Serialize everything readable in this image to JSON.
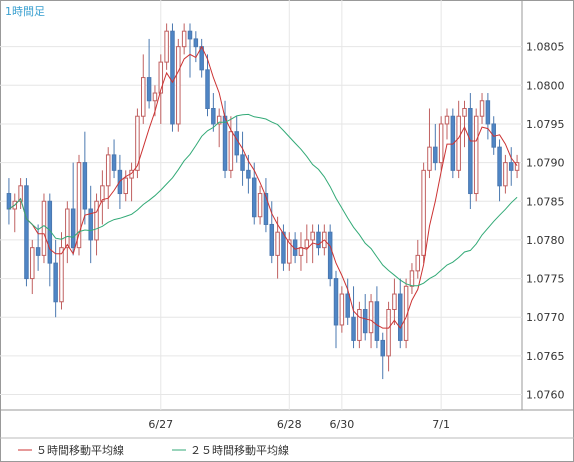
{
  "chart_data": {
    "type": "candlestick",
    "title": "1時間足",
    "ylim": [
      1.0758,
      1.081
    ],
    "y_ticks": [
      "1.0760",
      "1.0765",
      "1.0770",
      "1.0775",
      "1.0780",
      "1.0785",
      "1.0790",
      "1.0795",
      "1.0800",
      "1.0805"
    ],
    "x_labels": [
      {
        "label": "6/27",
        "index": 26
      },
      {
        "label": "6/28",
        "index": 48
      },
      {
        "label": "6/30",
        "index": 57
      },
      {
        "label": "7/1",
        "index": 74
      }
    ],
    "grid": true,
    "legend": [
      {
        "name": "５時間移動平均線",
        "color": "#cc3333"
      },
      {
        "name": "２５時間移動平均線",
        "color": "#33aa77"
      }
    ],
    "candles": [
      [
        1.0786,
        1.0788,
        1.0782,
        1.0784
      ],
      [
        1.0784,
        1.0786,
        1.0781,
        1.0785
      ],
      [
        1.0785,
        1.0788,
        1.0784,
        1.0787
      ],
      [
        1.0787,
        1.0788,
        1.0774,
        1.0775
      ],
      [
        1.0775,
        1.078,
        1.0773,
        1.0779
      ],
      [
        1.0779,
        1.0782,
        1.0776,
        1.0778
      ],
      [
        1.0778,
        1.0786,
        1.0777,
        1.0785
      ],
      [
        1.0785,
        1.0786,
        1.0774,
        1.0777
      ],
      [
        1.0777,
        1.078,
        1.077,
        1.0772
      ],
      [
        1.0772,
        1.0781,
        1.0771,
        1.0779
      ],
      [
        1.0779,
        1.0785,
        1.0777,
        1.0784
      ],
      [
        1.0784,
        1.079,
        1.0778,
        1.0779
      ],
      [
        1.0779,
        1.0791,
        1.0778,
        1.079
      ],
      [
        1.079,
        1.0794,
        1.0782,
        1.0784
      ],
      [
        1.0784,
        1.0787,
        1.0777,
        1.078
      ],
      [
        1.078,
        1.0786,
        1.0778,
        1.0785
      ],
      [
        1.0785,
        1.0789,
        1.0782,
        1.0787
      ],
      [
        1.0787,
        1.0792,
        1.0784,
        1.0791
      ],
      [
        1.0791,
        1.0793,
        1.0788,
        1.0789
      ],
      [
        1.0789,
        1.0791,
        1.0784,
        1.0786
      ],
      [
        1.0786,
        1.0789,
        1.0785,
        1.0788
      ],
      [
        1.0788,
        1.079,
        1.0785,
        1.0789
      ],
      [
        1.0789,
        1.0797,
        1.0788,
        1.0796
      ],
      [
        1.0796,
        1.0804,
        1.0795,
        1.0801
      ],
      [
        1.0801,
        1.0806,
        1.0797,
        1.0798
      ],
      [
        1.0798,
        1.08,
        1.0796,
        1.0799
      ],
      [
        1.0799,
        1.0804,
        1.0795,
        1.0803
      ],
      [
        1.0803,
        1.0808,
        1.0802,
        1.0807
      ],
      [
        1.0807,
        1.0808,
        1.0794,
        1.0795
      ],
      [
        1.0795,
        1.0806,
        1.0794,
        1.0805
      ],
      [
        1.0805,
        1.0808,
        1.0804,
        1.0807
      ],
      [
        1.0807,
        1.0808,
        1.0801,
        1.0806
      ],
      [
        1.0806,
        1.0807,
        1.0803,
        1.0805
      ],
      [
        1.0805,
        1.0806,
        1.0801,
        1.0802
      ],
      [
        1.0802,
        1.0804,
        1.0796,
        1.0797
      ],
      [
        1.0797,
        1.0799,
        1.0794,
        1.0795
      ],
      [
        1.0795,
        1.0797,
        1.0792,
        1.0796
      ],
      [
        1.0796,
        1.0798,
        1.0788,
        1.0789
      ],
      [
        1.0789,
        1.0796,
        1.0788,
        1.0794
      ],
      [
        1.0794,
        1.0796,
        1.079,
        1.0791
      ],
      [
        1.0791,
        1.0794,
        1.0787,
        1.0789
      ],
      [
        1.0789,
        1.0791,
        1.0786,
        1.0788
      ],
      [
        1.0788,
        1.079,
        1.0782,
        1.0783
      ],
      [
        1.0783,
        1.0787,
        1.0782,
        1.0786
      ],
      [
        1.0786,
        1.0788,
        1.0781,
        1.0782
      ],
      [
        1.0782,
        1.0785,
        1.0777,
        1.0778
      ],
      [
        1.0778,
        1.0783,
        1.0775,
        1.0781
      ],
      [
        1.0781,
        1.0782,
        1.0776,
        1.0777
      ],
      [
        1.0777,
        1.0781,
        1.0776,
        1.078
      ],
      [
        1.078,
        1.0781,
        1.0777,
        1.0778
      ],
      [
        1.0778,
        1.0781,
        1.0776,
        1.0779
      ],
      [
        1.0779,
        1.0782,
        1.0777,
        1.078
      ],
      [
        1.078,
        1.0782,
        1.0777,
        1.0781
      ],
      [
        1.0781,
        1.0782,
        1.0778,
        1.0779
      ],
      [
        1.0779,
        1.0782,
        1.0778,
        1.0781
      ],
      [
        1.0781,
        1.0782,
        1.0774,
        1.0775
      ],
      [
        1.0775,
        1.0776,
        1.0766,
        1.0769
      ],
      [
        1.0769,
        1.0774,
        1.0768,
        1.0773
      ],
      [
        1.0773,
        1.0775,
        1.0769,
        1.077
      ],
      [
        1.077,
        1.0774,
        1.0766,
        1.0767
      ],
      [
        1.0767,
        1.0772,
        1.0766,
        1.0771
      ],
      [
        1.0771,
        1.0773,
        1.0767,
        1.0768
      ],
      [
        1.0768,
        1.0773,
        1.0766,
        1.0772
      ],
      [
        1.0772,
        1.0774,
        1.0766,
        1.0767
      ],
      [
        1.0767,
        1.0768,
        1.0762,
        1.0765
      ],
      [
        1.0765,
        1.0772,
        1.0763,
        1.0771
      ],
      [
        1.0771,
        1.0775,
        1.0769,
        1.0773
      ],
      [
        1.0773,
        1.0775,
        1.0766,
        1.0767
      ],
      [
        1.0767,
        1.0775,
        1.0766,
        1.0774
      ],
      [
        1.0774,
        1.0777,
        1.0773,
        1.0776
      ],
      [
        1.0776,
        1.078,
        1.0775,
        1.0778
      ],
      [
        1.0778,
        1.079,
        1.0777,
        1.0789
      ],
      [
        1.0789,
        1.0797,
        1.0788,
        1.0792
      ],
      [
        1.0792,
        1.0795,
        1.0789,
        1.079
      ],
      [
        1.079,
        1.0796,
        1.0789,
        1.0795
      ],
      [
        1.0795,
        1.0797,
        1.0793,
        1.0796
      ],
      [
        1.0796,
        1.0797,
        1.0788,
        1.0789
      ],
      [
        1.0789,
        1.0798,
        1.0788,
        1.0796
      ],
      [
        1.0796,
        1.0798,
        1.0792,
        1.0797
      ],
      [
        1.0797,
        1.0799,
        1.0784,
        1.0786
      ],
      [
        1.0786,
        1.0797,
        1.0785,
        1.0796
      ],
      [
        1.0796,
        1.0799,
        1.0795,
        1.0798
      ],
      [
        1.0798,
        1.0799,
        1.0793,
        1.0795
      ],
      [
        1.0795,
        1.0796,
        1.0791,
        1.0792
      ],
      [
        1.0792,
        1.0793,
        1.0785,
        1.0787
      ],
      [
        1.0787,
        1.0791,
        1.0786,
        1.079
      ],
      [
        1.079,
        1.0792,
        1.0787,
        1.0789
      ],
      [
        1.0789,
        1.0791,
        1.0788,
        1.079
      ]
    ]
  }
}
